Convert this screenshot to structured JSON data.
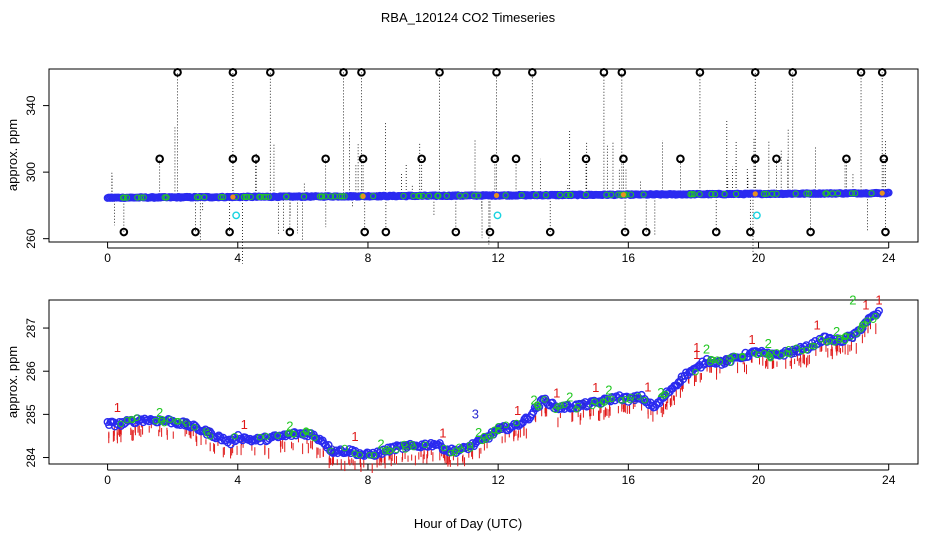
{
  "chart_data": [
    {
      "type": "scatter",
      "title": "RBA_120124  CO2 Timeseries",
      "xlabel": "Hour of Day (UTC)",
      "ylabel": "approx. ppm",
      "xlim": [
        -1.8,
        24.9
      ],
      "ylim": [
        258,
        362
      ],
      "xticks": [
        0,
        4,
        8,
        12,
        16,
        20,
        24
      ],
      "yticks": [
        260,
        300,
        340
      ],
      "baseline": {
        "start": 284.6,
        "end": 287.4
      },
      "outliers_high": [
        {
          "x": 2.15,
          "y": 360
        },
        {
          "x": 3.85,
          "y": 360
        },
        {
          "x": 5.0,
          "y": 360
        },
        {
          "x": 7.25,
          "y": 360
        },
        {
          "x": 7.8,
          "y": 360
        },
        {
          "x": 10.2,
          "y": 360
        },
        {
          "x": 11.95,
          "y": 360
        },
        {
          "x": 13.05,
          "y": 360
        },
        {
          "x": 15.25,
          "y": 360
        },
        {
          "x": 15.8,
          "y": 360
        },
        {
          "x": 18.2,
          "y": 360
        },
        {
          "x": 19.9,
          "y": 360
        },
        {
          "x": 21.05,
          "y": 360
        },
        {
          "x": 23.15,
          "y": 360
        },
        {
          "x": 23.8,
          "y": 360
        }
      ],
      "outliers_mid": [
        {
          "x": 1.6,
          "y": 308
        },
        {
          "x": 3.85,
          "y": 308
        },
        {
          "x": 4.55,
          "y": 308
        },
        {
          "x": 6.7,
          "y": 308
        },
        {
          "x": 7.85,
          "y": 308
        },
        {
          "x": 9.65,
          "y": 308
        },
        {
          "x": 11.9,
          "y": 308
        },
        {
          "x": 12.55,
          "y": 308
        },
        {
          "x": 14.7,
          "y": 308
        },
        {
          "x": 15.85,
          "y": 308
        },
        {
          "x": 17.6,
          "y": 308
        },
        {
          "x": 19.9,
          "y": 308
        },
        {
          "x": 20.55,
          "y": 308
        },
        {
          "x": 22.7,
          "y": 308
        },
        {
          "x": 23.85,
          "y": 308
        }
      ],
      "outliers_low": [
        {
          "x": 0.5,
          "y": 264
        },
        {
          "x": 2.7,
          "y": 264
        },
        {
          "x": 3.75,
          "y": 264
        },
        {
          "x": 5.6,
          "y": 264
        },
        {
          "x": 7.9,
          "y": 264
        },
        {
          "x": 8.55,
          "y": 264
        },
        {
          "x": 10.7,
          "y": 264
        },
        {
          "x": 11.75,
          "y": 264
        },
        {
          "x": 13.6,
          "y": 264
        },
        {
          "x": 15.9,
          "y": 264
        },
        {
          "x": 16.55,
          "y": 264
        },
        {
          "x": 18.7,
          "y": 264
        },
        {
          "x": 19.75,
          "y": 264
        },
        {
          "x": 21.6,
          "y": 264
        },
        {
          "x": 23.9,
          "y": 264
        }
      ],
      "cal_points": [
        {
          "x": 3.95,
          "y": 274
        },
        {
          "x": 11.98,
          "y": 274
        },
        {
          "x": 19.95,
          "y": 274
        }
      ]
    },
    {
      "type": "scatter",
      "xlabel": "Hour of Day (UTC)",
      "ylabel": "approx. ppm",
      "xlim": [
        -1.8,
        24.9
      ],
      "ylim": [
        283.85,
        287.65
      ],
      "xticks": [
        0,
        4,
        8,
        12,
        16,
        20,
        24
      ],
      "yticks": [
        284,
        285,
        286,
        287
      ],
      "series_keypoints": [
        [
          0,
          284.78
        ],
        [
          0.4,
          284.78
        ],
        [
          1.0,
          284.88
        ],
        [
          1.9,
          284.85
        ],
        [
          2.5,
          284.75
        ],
        [
          3.0,
          284.6
        ],
        [
          3.8,
          284.35
        ],
        [
          4.0,
          284.48
        ],
        [
          4.5,
          284.4
        ],
        [
          5.0,
          284.45
        ],
        [
          5.8,
          284.55
        ],
        [
          6.2,
          284.55
        ],
        [
          6.6,
          284.4
        ],
        [
          6.9,
          284.15
        ],
        [
          7.5,
          284.15
        ],
        [
          7.9,
          284.05
        ],
        [
          8.3,
          284.1
        ],
        [
          8.8,
          284.22
        ],
        [
          9.6,
          284.28
        ],
        [
          10.1,
          284.32
        ],
        [
          10.5,
          284.15
        ],
        [
          10.9,
          284.18
        ],
        [
          11.3,
          284.32
        ],
        [
          11.7,
          284.48
        ],
        [
          12.0,
          284.65
        ],
        [
          12.5,
          284.72
        ],
        [
          12.9,
          284.9
        ],
        [
          13.4,
          285.35
        ],
        [
          13.8,
          285.15
        ],
        [
          14.5,
          285.2
        ],
        [
          15.2,
          285.3
        ],
        [
          15.7,
          285.4
        ],
        [
          16.0,
          285.35
        ],
        [
          16.4,
          285.4
        ],
        [
          16.8,
          285.15
        ],
        [
          17.2,
          285.5
        ],
        [
          17.8,
          285.95
        ],
        [
          18.1,
          286.05
        ],
        [
          18.4,
          286.25
        ],
        [
          18.9,
          286.2
        ],
        [
          19.5,
          286.35
        ],
        [
          20.0,
          286.45
        ],
        [
          20.4,
          286.35
        ],
        [
          21.0,
          286.45
        ],
        [
          21.5,
          286.55
        ],
        [
          22.0,
          286.75
        ],
        [
          22.5,
          286.7
        ],
        [
          23.0,
          286.85
        ],
        [
          23.3,
          287.15
        ],
        [
          23.7,
          287.35
        ]
      ],
      "flag_labels": [
        "1",
        "2",
        "3"
      ]
    }
  ]
}
